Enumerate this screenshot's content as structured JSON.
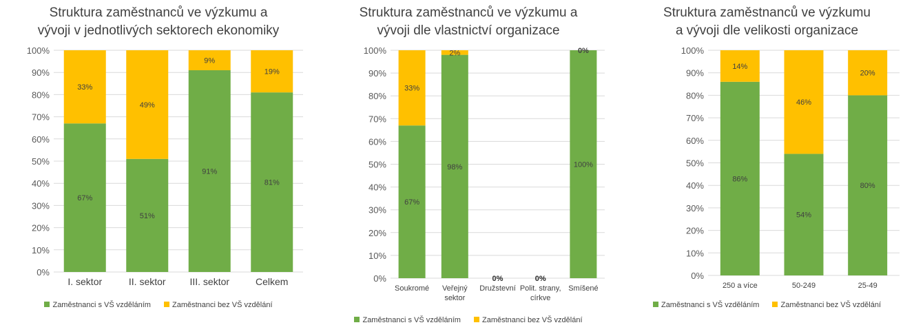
{
  "colors": {
    "green": "#70ad47",
    "yellow": "#ffc000",
    "grid": "#d9d9d9"
  },
  "legend": {
    "series1": "Zaměstnanci s VŠ vzděláním",
    "series2": "Zaměstnanci bez VŠ vzdělání"
  },
  "chart_data": [
    {
      "type": "bar",
      "stacked": true,
      "title_lines": [
        "Struktura zaměstnanců ve výzkumu a",
        "vývoji v jednotlivých sektorech ekonomiky"
      ],
      "categories": [
        [
          "I. sektor"
        ],
        [
          "II. sektor"
        ],
        [
          "III. sektor"
        ],
        [
          "Celkem"
        ]
      ],
      "y_ticks": [
        "0%",
        "10%",
        "20%",
        "30%",
        "40%",
        "50%",
        "60%",
        "70%",
        "80%",
        "90%",
        "100%"
      ],
      "ylim": [
        0,
        100
      ],
      "series": [
        {
          "name": "Zaměstnanci s VŠ vzděláním",
          "values": [
            67,
            51,
            91,
            81
          ],
          "labels": [
            "67%",
            "51%",
            "91%",
            "81%"
          ]
        },
        {
          "name": "Zaměstnanci bez VŠ vzdělání",
          "values": [
            33,
            49,
            9,
            19
          ],
          "labels": [
            "33%",
            "49%",
            "9%",
            "19%"
          ]
        }
      ],
      "legend_position": "bottom",
      "grid": true
    },
    {
      "type": "bar",
      "stacked": true,
      "title_lines": [
        "Struktura zaměstnanců ve výzkumu a",
        "vývoji dle vlastnictví organizace"
      ],
      "categories": [
        [
          "Soukromé"
        ],
        [
          "Veřejný",
          "sektor"
        ],
        [
          "Družstevní"
        ],
        [
          "Polit. strany,",
          "církve"
        ],
        [
          "Smíšené"
        ]
      ],
      "y_ticks": [
        "0%",
        "10%",
        "20%",
        "30%",
        "40%",
        "50%",
        "60%",
        "70%",
        "80%",
        "90%",
        "100%"
      ],
      "ylim": [
        0,
        100
      ],
      "series": [
        {
          "name": "Zaměstnanci s VŠ vzděláním",
          "values": [
            67,
            98,
            0,
            0,
            100
          ],
          "labels": [
            "67%",
            "98%",
            "0%",
            "0%",
            "100%"
          ]
        },
        {
          "name": "Zaměstnanci bez VŠ vzdělání",
          "values": [
            33,
            2,
            0,
            0,
            0
          ],
          "labels": [
            "33%",
            "2%",
            "0%",
            "0%",
            "0%"
          ]
        }
      ],
      "legend_position": "bottom",
      "grid": true
    },
    {
      "type": "bar",
      "stacked": true,
      "title_lines": [
        "Struktura zaměstnanců ve výzkumu",
        "a vývoji dle velikosti organizace"
      ],
      "categories": [
        [
          "250 a více"
        ],
        [
          "50-249"
        ],
        [
          "25-49"
        ]
      ],
      "y_ticks": [
        "0%",
        "10%",
        "20%",
        "30%",
        "40%",
        "50%",
        "60%",
        "70%",
        "80%",
        "90%",
        "100%"
      ],
      "ylim": [
        0,
        100
      ],
      "series": [
        {
          "name": "Zaměstnanci s VŠ vzděláním",
          "values": [
            86,
            54,
            80
          ],
          "labels": [
            "86%",
            "54%",
            "80%"
          ]
        },
        {
          "name": "Zaměstnanci bez VŠ vzdělání",
          "values": [
            14,
            46,
            20
          ],
          "labels": [
            "14%",
            "46%",
            "20%"
          ]
        }
      ],
      "legend_position": "bottom",
      "grid": true
    }
  ]
}
